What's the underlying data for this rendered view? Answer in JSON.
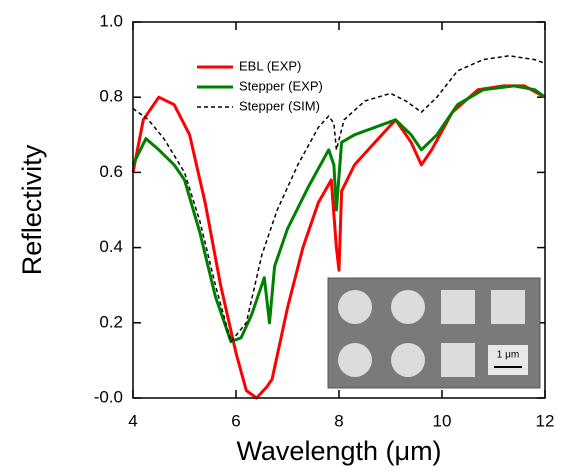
{
  "chart_data": {
    "type": "line",
    "xlabel": "Wavelength (μm)",
    "ylabel": "Reflectivity",
    "xlim": [
      4,
      12
    ],
    "ylim": [
      0,
      1
    ],
    "xticks": [
      4,
      6,
      8,
      10,
      12
    ],
    "yticks": [
      {
        "value": 0,
        "label": "-0.0"
      },
      0.2,
      0.4,
      0.6,
      0.8,
      {
        "value": 1,
        "label": "1.0"
      }
    ],
    "legend": "upper left",
    "scale_bar_label": "1 μm",
    "series": [
      {
        "name": "EBL (EXP)",
        "color": "#ff0000",
        "dash": false,
        "x": [
          4,
          4.2,
          4.5,
          4.8,
          5.1,
          5.4,
          5.7,
          6.0,
          6.2,
          6.4,
          6.6,
          6.7,
          7.0,
          7.3,
          7.6,
          7.85,
          7.95,
          8.0,
          8.05,
          8.3,
          8.7,
          9.1,
          9.4,
          9.6,
          9.8,
          10.2,
          10.7,
          11.2,
          11.6,
          12
        ],
        "values": [
          0.6,
          0.74,
          0.8,
          0.78,
          0.7,
          0.52,
          0.3,
          0.12,
          0.02,
          0.0,
          0.03,
          0.05,
          0.24,
          0.4,
          0.52,
          0.58,
          0.4,
          0.34,
          0.55,
          0.62,
          0.68,
          0.74,
          0.68,
          0.62,
          0.66,
          0.76,
          0.82,
          0.83,
          0.83,
          0.8
        ]
      },
      {
        "name": "Stepper (EXP)",
        "color": "#008000",
        "dash": false,
        "x": [
          4,
          4.25,
          4.5,
          4.8,
          5.0,
          5.3,
          5.6,
          5.9,
          6.1,
          6.3,
          6.55,
          6.65,
          6.75,
          7.0,
          7.4,
          7.8,
          7.9,
          7.95,
          8.05,
          8.3,
          8.7,
          9.1,
          9.4,
          9.6,
          9.9,
          10.3,
          10.8,
          11.4,
          11.8,
          12
        ],
        "values": [
          0.62,
          0.69,
          0.66,
          0.62,
          0.58,
          0.44,
          0.27,
          0.15,
          0.16,
          0.22,
          0.32,
          0.2,
          0.35,
          0.45,
          0.56,
          0.66,
          0.62,
          0.5,
          0.68,
          0.7,
          0.72,
          0.74,
          0.7,
          0.66,
          0.7,
          0.78,
          0.82,
          0.83,
          0.82,
          0.8
        ]
      },
      {
        "name": "Stepper (SIM)",
        "color": "#000000",
        "dash": true,
        "x": [
          4,
          4.3,
          4.6,
          5.0,
          5.3,
          5.6,
          5.9,
          6.2,
          6.5,
          6.8,
          7.2,
          7.6,
          7.8,
          7.9,
          7.95,
          8.1,
          8.5,
          9.0,
          9.3,
          9.6,
          9.9,
          10.3,
          10.8,
          11.3,
          11.8,
          12
        ],
        "values": [
          0.77,
          0.74,
          0.69,
          0.6,
          0.47,
          0.3,
          0.15,
          0.2,
          0.38,
          0.5,
          0.62,
          0.72,
          0.75,
          0.73,
          0.66,
          0.74,
          0.79,
          0.81,
          0.79,
          0.76,
          0.8,
          0.87,
          0.9,
          0.91,
          0.9,
          0.89
        ]
      }
    ]
  }
}
